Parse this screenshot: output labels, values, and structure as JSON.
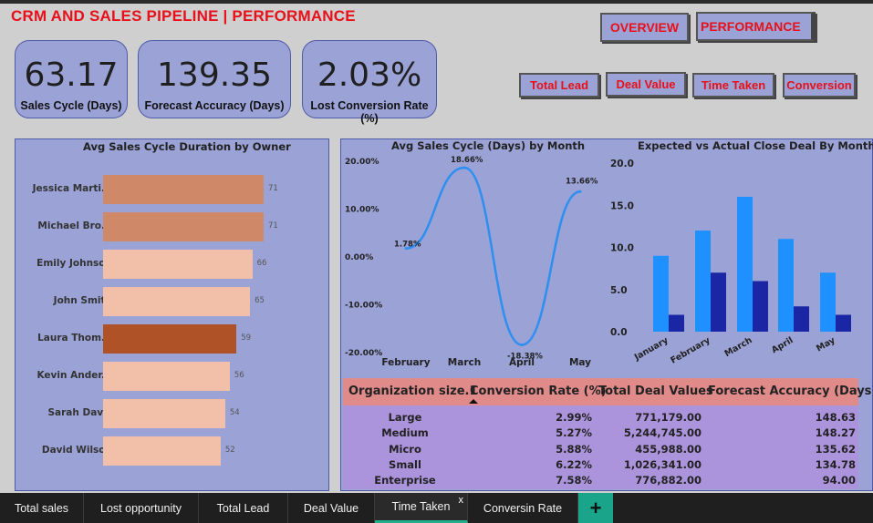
{
  "header": {
    "title": "CRM AND SALES PIPELINE | PERFORMANCE"
  },
  "nav": {
    "overview": "OVERVIEW",
    "performance": "PERFORMANCE"
  },
  "filters": [
    "Total Lead",
    "Deal Value",
    "Time Taken",
    "Conversion"
  ],
  "kpis": [
    {
      "value": "63.17",
      "label": "Sales Cycle (Days)"
    },
    {
      "value": "139.35",
      "label": "Forecast Accuracy (Days)"
    },
    {
      "value": "2.03%",
      "label": "Lost Conversion Rate (%)"
    }
  ],
  "owner_chart": {
    "title": "Avg Sales Cycle Duration by Owner",
    "colors": {
      "default": "#f2c0a8",
      "mid": "#cf8868",
      "highlight": "#b05227"
    },
    "rows": [
      {
        "name": "Jessica Marti...",
        "value": 71,
        "label": "71",
        "shade": "mid"
      },
      {
        "name": "Michael Bro...",
        "value": 71,
        "label": "71",
        "shade": "mid"
      },
      {
        "name": "Emily Johnson",
        "value": 66,
        "label": "66",
        "shade": "default"
      },
      {
        "name": "John Smith",
        "value": 65,
        "label": "65",
        "shade": "default"
      },
      {
        "name": "Laura Thom...",
        "value": 59,
        "label": "59",
        "shade": "highlight"
      },
      {
        "name": "Kevin Ander...",
        "value": 56,
        "label": "56",
        "shade": "default"
      },
      {
        "name": "Sarah Davis",
        "value": 54,
        "label": "54",
        "shade": "default"
      },
      {
        "name": "David Wilson",
        "value": 52,
        "label": "52",
        "shade": "default"
      }
    ]
  },
  "chart_data": [
    {
      "type": "line",
      "title": "Avg Sales Cycle (Days) by Month",
      "categories": [
        "February",
        "March",
        "April",
        "May"
      ],
      "values": [
        1.78,
        18.66,
        -18.38,
        13.66
      ],
      "data_labels": [
        "1.78%",
        "18.66%",
        "-18.38%",
        "13.66%"
      ],
      "y_ticks": [
        "20.00%",
        "10.00%",
        "0.00%",
        "-10.00%",
        "-20.00%"
      ],
      "ylim": [
        -20,
        20
      ],
      "color": "#2f8ff0"
    },
    {
      "type": "bar",
      "title": "Expected vs Actual Close Deal By Month",
      "categories": [
        "January",
        "February",
        "March",
        "April",
        "May"
      ],
      "series": [
        {
          "values": [
            9,
            12,
            16,
            11,
            7
          ],
          "color": "#1e90ff"
        },
        {
          "values": [
            2,
            7,
            6,
            3,
            2
          ],
          "color": "#1a26a3"
        }
      ],
      "y_ticks": [
        "20.0",
        "15.0",
        "10.0",
        "5.0",
        "0.0"
      ],
      "ylim": [
        0,
        20
      ]
    }
  ],
  "table": {
    "headers": [
      "Organization size.1",
      "Conversion Rate (%)",
      "Total Deal Values",
      "Forecast Accuracy (Days)"
    ],
    "rows": [
      [
        "Large",
        "2.99%",
        "771,179.00",
        "148.63"
      ],
      [
        "Medium",
        "5.27%",
        "5,244,745.00",
        "148.27"
      ],
      [
        "Micro",
        "5.88%",
        "455,988.00",
        "135.62"
      ],
      [
        "Small",
        "6.22%",
        "1,026,341.00",
        "134.78"
      ],
      [
        "Enterprise",
        "7.58%",
        "776,882.00",
        "94.00"
      ]
    ]
  },
  "tabs": [
    {
      "label": "Total sales"
    },
    {
      "label": "Lost opportunity"
    },
    {
      "label": "Total Lead"
    },
    {
      "label": "Deal Value"
    },
    {
      "label": "Time Taken",
      "active": true
    },
    {
      "label": "Conversin Rate"
    }
  ],
  "icons": {
    "add_tab": "+",
    "close_tab": "x"
  }
}
